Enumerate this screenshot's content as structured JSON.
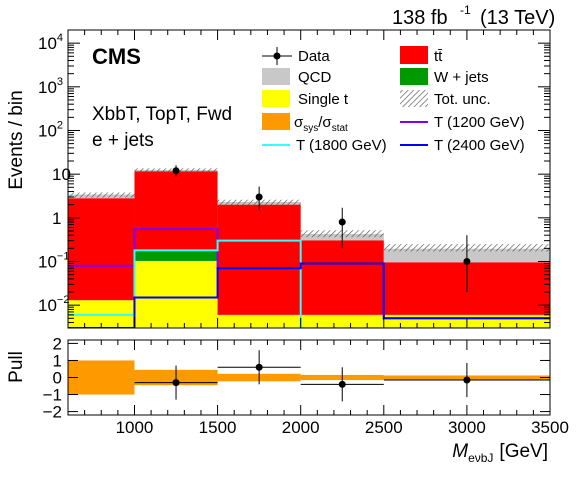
{
  "header": {
    "lumi_text": "138 fb",
    "lumi_exp": "-1",
    "energy_text": "(13 TeV)",
    "cms_label": "CMS",
    "region_label": "XbbT, TopT, Fwd",
    "channel_label": "e + jets"
  },
  "colors": {
    "ttbar": "#ff0000",
    "qcd": "#c8c8c8",
    "wjets": "#009900",
    "single_t": "#ffff00",
    "syst_band": "#ff9900",
    "t1200": "#7f00ff",
    "t1800": "#33ffff",
    "t2400": "#0000ff",
    "data": "#000000"
  },
  "legend": {
    "data": "Data",
    "ttbar": "tt̄",
    "qcd": "QCD",
    "wjets": "W + jets",
    "single_t": "Single t",
    "tot_unc": "Tot. unc.",
    "sys_stat_a": "σ",
    "sys_stat_b": "sys",
    "sys_stat_c": "/σ",
    "sys_stat_d": "stat",
    "t1200": "T (1200 GeV)",
    "t1800": "T (1800 GeV)",
    "t2400": "T (2400 GeV)"
  },
  "chart_data": {
    "type": "bar",
    "main": {
      "ylabel": "Events / bin",
      "yscale": "log",
      "ylim": [
        0.003,
        20000
      ],
      "yticks": [
        {
          "v": 0.01,
          "b": "10",
          "e": "−2"
        },
        {
          "v": 0.1,
          "b": "10",
          "e": "−1"
        },
        {
          "v": 1,
          "b": "1",
          "e": ""
        },
        {
          "v": 10,
          "b": "10",
          "e": ""
        },
        {
          "v": 100,
          "b": "10",
          "e": "2"
        },
        {
          "v": 1000,
          "b": "10",
          "e": "3"
        },
        {
          "v": 10000,
          "b": "10",
          "e": "4"
        }
      ],
      "bin_edges": [
        600,
        1000,
        1500,
        2000,
        2500,
        3500
      ],
      "stack": [
        {
          "name": "Single t",
          "values": [
            0.01,
            0.1,
            0.003,
            0.003,
            0.003
          ]
        },
        {
          "name": "W + jets",
          "values": [
            0.0,
            0.08,
            0.0,
            0.0,
            0.0
          ]
        },
        {
          "name": "tt̄",
          "values": [
            2.8,
            11.5,
            2.0,
            0.3,
            0.09
          ]
        },
        {
          "name": "QCD",
          "values": [
            0.6,
            0.8,
            0.3,
            0.12,
            0.1
          ]
        }
      ],
      "total_unc_band": {
        "low": [
          2.9,
          11.0,
          1.9,
          0.36,
          0.17
        ],
        "high": [
          3.8,
          13.6,
          2.6,
          0.52,
          0.25
        ]
      },
      "data": {
        "x": [
          1250,
          1750,
          2250,
          3000
        ],
        "y": [
          12.0,
          3.0,
          0.8,
          0.1
        ],
        "yerr_low": [
          3.2,
          1.5,
          0.6,
          0.08
        ],
        "yerr_high": [
          4.0,
          2.2,
          0.9,
          0.3
        ]
      },
      "signals": [
        {
          "name": "T (1200 GeV)",
          "values": [
            0.08,
            0.55,
            0.07,
            0.09,
            0.005
          ]
        },
        {
          "name": "T (1800 GeV)",
          "values": [
            0.006,
            0.18,
            0.3,
            0.003,
            0.003
          ]
        },
        {
          "name": "T (2400 GeV)",
          "values": [
            0.003,
            0.015,
            0.07,
            0.09,
            0.005
          ]
        }
      ]
    },
    "pull": {
      "ylabel": "Pull",
      "ylim": [
        -2.2,
        2.2
      ],
      "yticks": [
        -2,
        -1,
        0,
        1,
        2
      ],
      "ytick_labels": [
        "−2",
        "−1",
        "0",
        "1",
        "2"
      ],
      "syst_band": [
        1.0,
        0.45,
        0.22,
        0.15,
        0.12
      ],
      "points": [
        {
          "x": 1250,
          "xerr": 250,
          "y": -0.3,
          "yerr": 1.0
        },
        {
          "x": 1750,
          "xerr": 250,
          "y": 0.6,
          "yerr": 1.0
        },
        {
          "x": 2250,
          "xerr": 250,
          "y": -0.4,
          "yerr": 1.0
        },
        {
          "x": 3000,
          "xerr": 500,
          "y": -0.15,
          "yerr": 1.0
        }
      ]
    },
    "xaxis": {
      "xlim": [
        600,
        3500
      ],
      "ticks": [
        1000,
        1500,
        2000,
        2500,
        3000,
        3500
      ],
      "tick_labels": [
        "1000",
        "1500",
        "2000",
        "2500",
        "3000",
        "3500"
      ],
      "label_main": "M",
      "label_sub": "eνbJ",
      "label_unit": "[GeV]"
    }
  }
}
